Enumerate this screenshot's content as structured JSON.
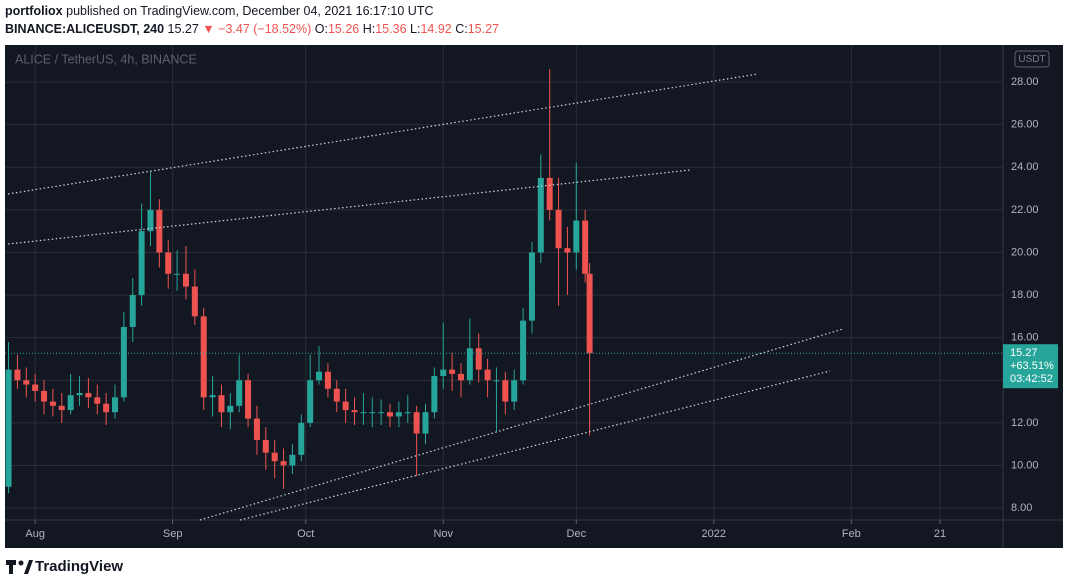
{
  "header": {
    "author": "portfoliox",
    "published": "published on TradingView.com, December 04, 2021 16:17:10 UTC",
    "symbol": "BINANCE:ALICEUSDT, 240",
    "last": "15.27",
    "change": "▼ −3.47 (−18.52%)",
    "ohlc": [
      {
        "label": "O:",
        "value": "15.26"
      },
      {
        "label": "H:",
        "value": "15.36"
      },
      {
        "label": "L:",
        "value": "14.92"
      },
      {
        "label": "C:",
        "value": "15.27"
      }
    ]
  },
  "footer": {
    "brand": "TradingView"
  },
  "chart_data": {
    "type": "candlestick",
    "title": "ALICE / TetherUS, 4h, BINANCE",
    "currency": "USDT",
    "up_color": "#26a69a",
    "down_color": "#ef5350",
    "grid": true,
    "price_label": {
      "price": "15.27",
      "change": "+63.51%",
      "countdown": "03:42:52"
    },
    "xlim": [
      -6.8,
      218.2
    ],
    "xticks": [
      {
        "value": 0,
        "label": "Aug"
      },
      {
        "value": 31,
        "label": "Sep"
      },
      {
        "value": 61,
        "label": "Oct"
      },
      {
        "value": 92,
        "label": "Nov"
      },
      {
        "value": 122,
        "label": "Dec"
      },
      {
        "value": 153,
        "label": "2022"
      },
      {
        "value": 184,
        "label": "Feb"
      },
      {
        "value": 204,
        "label": "21"
      }
    ],
    "ylim": [
      7.44,
      29.74
    ],
    "yticks": [
      {
        "value": 8,
        "label": "8.00"
      },
      {
        "value": 10,
        "label": "10.00"
      },
      {
        "value": 12,
        "label": "12.00"
      },
      {
        "value": 14,
        "label": "14.00"
      },
      {
        "value": 16,
        "label": "16.00"
      },
      {
        "value": 18,
        "label": "18.00"
      },
      {
        "value": 20,
        "label": "20.00"
      },
      {
        "value": 22,
        "label": "22.00"
      },
      {
        "value": 24,
        "label": "24.00"
      },
      {
        "value": 26,
        "label": "26.00"
      },
      {
        "value": 28,
        "label": "28.00"
      }
    ],
    "x": [
      -6,
      -4,
      -2,
      0,
      2,
      4,
      6,
      8,
      10,
      12,
      14,
      16,
      18,
      20,
      22,
      24,
      26,
      28,
      30,
      32,
      34,
      36,
      38,
      40,
      42,
      44,
      46,
      48,
      50,
      52,
      54,
      56,
      58,
      60,
      62,
      64,
      66,
      68,
      70,
      72,
      74,
      76,
      78,
      80,
      82,
      84,
      86,
      88,
      90,
      92,
      94,
      96,
      98,
      100,
      102,
      104,
      106,
      108,
      110,
      112,
      114,
      116,
      118,
      120,
      122,
      124,
      125
    ],
    "open": [
      9,
      14.5,
      14,
      13.8,
      13.5,
      13,
      12.8,
      12.6,
      13.3,
      13.4,
      13.2,
      12.9,
      12.5,
      13.2,
      16.5,
      18,
      21,
      22,
      20,
      19,
      19,
      18.4,
      17,
      13.2,
      13.3,
      12.5,
      12.8,
      14,
      12.2,
      11.2,
      10.6,
      10.2,
      10,
      10.5,
      12,
      14,
      14.4,
      13.6,
      13,
      12.6,
      12.5,
      12.5,
      12.5,
      12.5,
      12.3,
      12.5,
      12.5,
      11.5,
      12.5,
      14.2,
      14.5,
      14.3,
      14,
      15.5,
      14.5,
      14,
      14,
      13,
      14,
      16.8,
      20,
      23.5,
      22,
      20.2,
      20,
      21.5,
      19
    ],
    "high": [
      15.8,
      15.2,
      14.6,
      14.3,
      14,
      13.6,
      13.4,
      14.3,
      14.2,
      14.1,
      13.8,
      13.4,
      13.8,
      17.2,
      18.8,
      22.3,
      23.8,
      22.5,
      20.6,
      20.1,
      20.3,
      19.2,
      17.4,
      14.2,
      13.8,
      13.4,
      15.2,
      14.3,
      12.8,
      11.8,
      11.2,
      10.8,
      11,
      12.4,
      15.2,
      15.6,
      14.8,
      14,
      13.6,
      13.2,
      13.4,
      13.2,
      13.1,
      12.9,
      13,
      13.3,
      12.8,
      12.9,
      14.6,
      16.7,
      15.3,
      14.8,
      16.9,
      16.2,
      15,
      14.6,
      14.4,
      14.5,
      17.4,
      20.5,
      24.6,
      28.6,
      23.5,
      21.2,
      24.2,
      22,
      19.5
    ],
    "low": [
      8.7,
      13.6,
      13.2,
      13,
      12.4,
      12.3,
      12,
      12.4,
      12.8,
      12.7,
      12.4,
      11.9,
      12.2,
      13,
      15.8,
      17.5,
      20.3,
      19.3,
      18.3,
      18.2,
      17.8,
      16.6,
      12.6,
      12.3,
      11.8,
      11.7,
      12.5,
      11.8,
      10.5,
      9.8,
      9.4,
      8.9,
      9.6,
      10.2,
      11.8,
      13.8,
      13.2,
      12.5,
      12,
      11.9,
      11.9,
      11.8,
      11.9,
      11.8,
      11.8,
      12,
      9.5,
      11,
      12.2,
      13.6,
      13.5,
      13.2,
      13.8,
      13.9,
      13.2,
      11.6,
      12.4,
      12.6,
      13.8,
      16.2,
      19.5,
      21.5,
      17.5,
      18,
      19.2,
      18.6,
      11.4
    ],
    "close": [
      14.5,
      14,
      13.8,
      13.5,
      13,
      12.8,
      12.6,
      13.3,
      13.4,
      13.2,
      12.9,
      12.5,
      13.2,
      16.5,
      18,
      21,
      22,
      20,
      19,
      19,
      18.4,
      17,
      13.2,
      13.3,
      12.5,
      12.8,
      14,
      12.2,
      11.2,
      10.6,
      10.2,
      10,
      10.5,
      12,
      14,
      14.4,
      13.6,
      13,
      12.6,
      12.5,
      12.5,
      12.5,
      12.5,
      12.3,
      12.5,
      12.5,
      11.5,
      12.5,
      14.2,
      14.5,
      14.3,
      14,
      15.5,
      14.5,
      14,
      14,
      13,
      14,
      16.8,
      20,
      23.5,
      22,
      20.2,
      20,
      21.5,
      19,
      15.27
    ]
  }
}
